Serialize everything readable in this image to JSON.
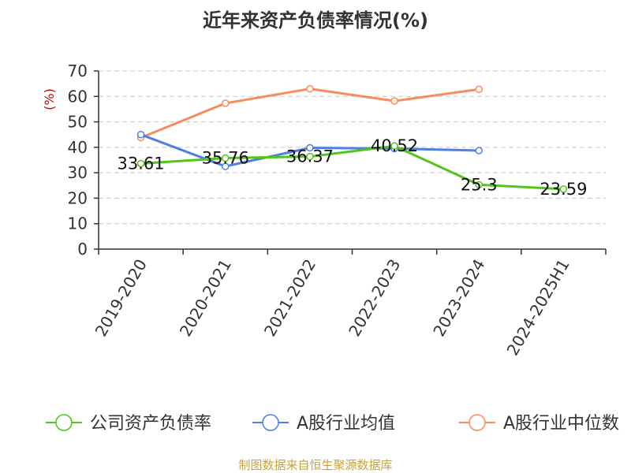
{
  "chart_data": {
    "type": "line",
    "title": "近年来资产负债率情况(%)",
    "unit_label": "(%)",
    "categories": [
      "2019-2020",
      "2020-2021",
      "2021-2022",
      "2022-2023",
      "2023-2024",
      "2024-2025H1"
    ],
    "ylim": [
      0,
      70
    ],
    "yticks": [
      0,
      10,
      20,
      30,
      40,
      50,
      60,
      70
    ],
    "grid": true,
    "legend_position": "bottom",
    "series": [
      {
        "name": "公司资产负债率",
        "color": "#52c41a",
        "values": [
          33.61,
          35.76,
          36.37,
          40.52,
          25.3,
          23.59
        ],
        "labels": [
          "33.61",
          "35.76",
          "36.37",
          "40.52",
          "25.3",
          "23.59"
        ]
      },
      {
        "name": "A股行业均值",
        "color": "#4f7fe0",
        "values": [
          45.0,
          32.5,
          39.8,
          39.5,
          38.7,
          null
        ]
      },
      {
        "name": "A股行业中位数",
        "color": "#f78c5c",
        "values": [
          43.8,
          57.3,
          63.0,
          58.2,
          62.8,
          null
        ]
      }
    ]
  },
  "footer": {
    "source": "制图数据来自恒生聚源数据库"
  }
}
